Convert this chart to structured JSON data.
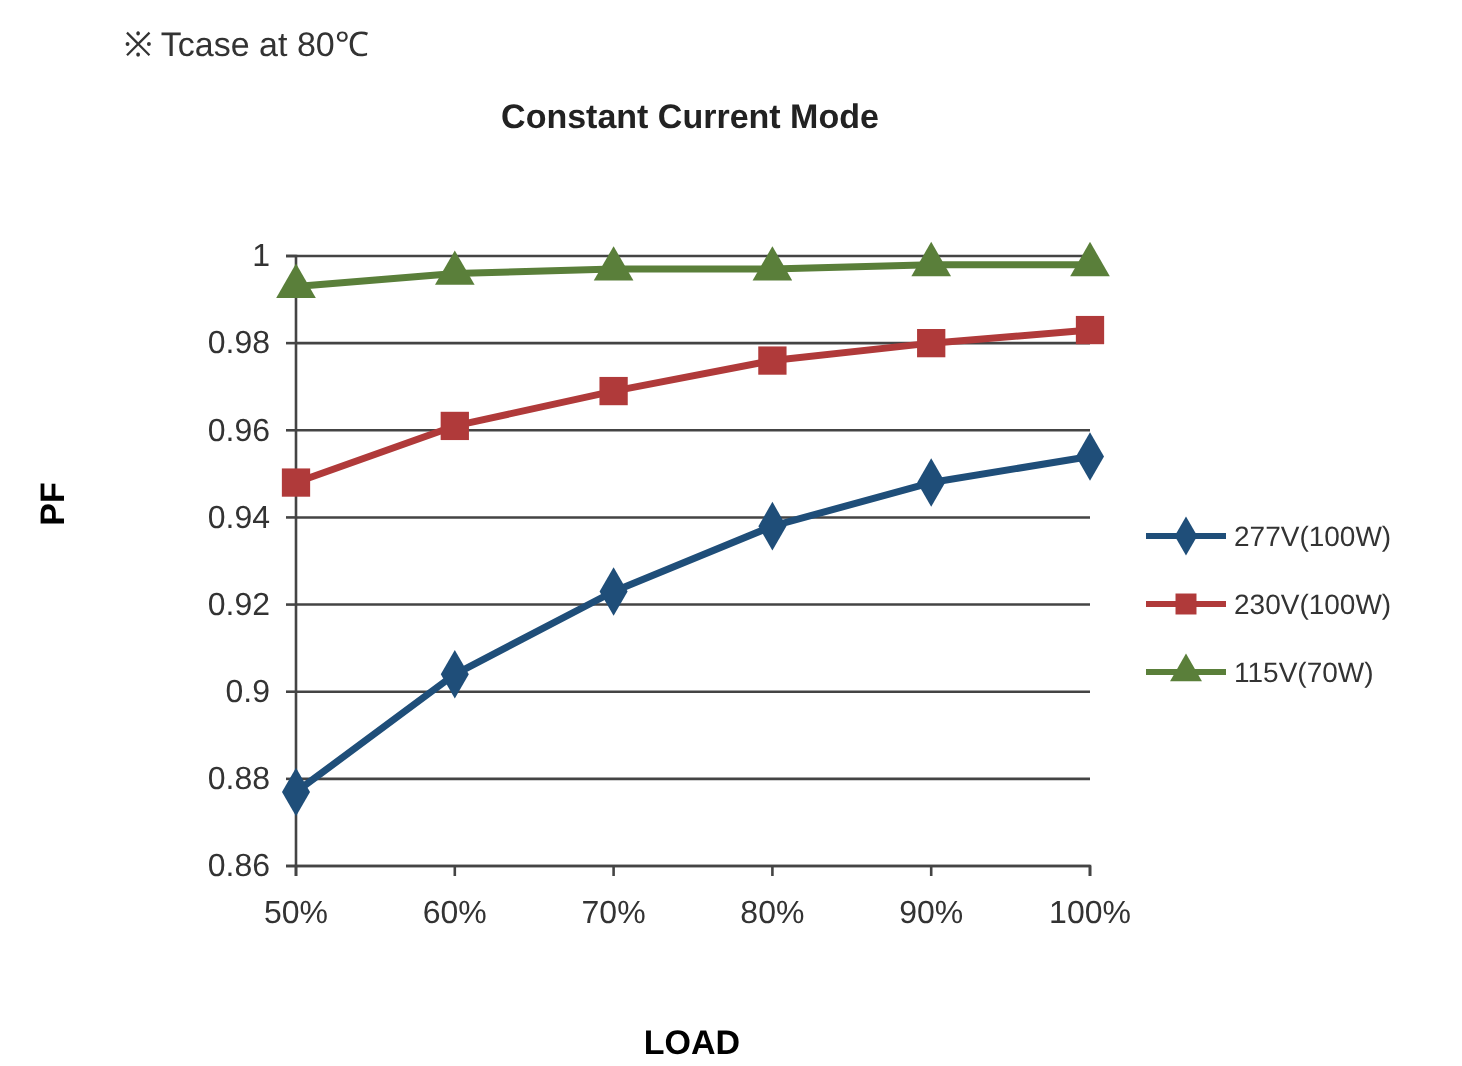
{
  "chart_data": {
    "type": "line",
    "title": "Constant Current Mode",
    "xlabel": "LOAD",
    "ylabel": "PF",
    "annotations": [
      "※ Tcase at 80℃"
    ],
    "categories": [
      "50%",
      "60%",
      "70%",
      "80%",
      "90%",
      "100%"
    ],
    "series": [
      {
        "name": "277V(100W)",
        "color": "#1f4e79",
        "marker": "diamond",
        "values": [
          0.877,
          0.904,
          0.923,
          0.938,
          0.948,
          0.954
        ]
      },
      {
        "name": "230V(100W)",
        "color": "#b03a3a",
        "marker": "square",
        "values": [
          0.948,
          0.961,
          0.969,
          0.976,
          0.98,
          0.983
        ]
      },
      {
        "name": "115V(70W)",
        "color": "#5a7f3a",
        "marker": "triangle",
        "values": [
          0.993,
          0.996,
          0.997,
          0.997,
          0.998,
          0.998
        ]
      }
    ],
    "ylim": [
      0.86,
      1
    ],
    "yticks": [
      0.86,
      0.88,
      0.9,
      0.92,
      0.94,
      0.96,
      0.98,
      1
    ],
    "grid": "y",
    "legend": "right",
    "line_style": "solid"
  }
}
